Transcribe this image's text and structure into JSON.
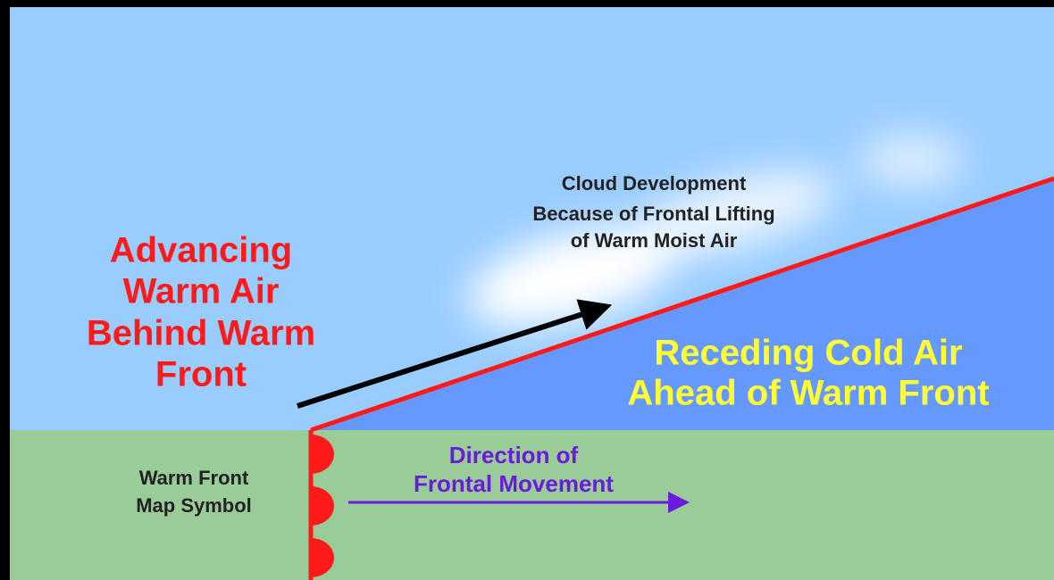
{
  "labels": {
    "cloud": [
      "Cloud Development",
      "Because of Frontal Lifting",
      "of  Warm Moist Air"
    ],
    "warm_air": [
      "Advancing",
      "Warm Air",
      "Behind Warm",
      "Front"
    ],
    "cold_air": [
      "Receding Cold Air",
      "Ahead of Warm Front"
    ],
    "movement": [
      "Direction of",
      "Frontal Movement"
    ],
    "symbol": [
      "Warm Front",
      "Map Symbol"
    ]
  }
}
